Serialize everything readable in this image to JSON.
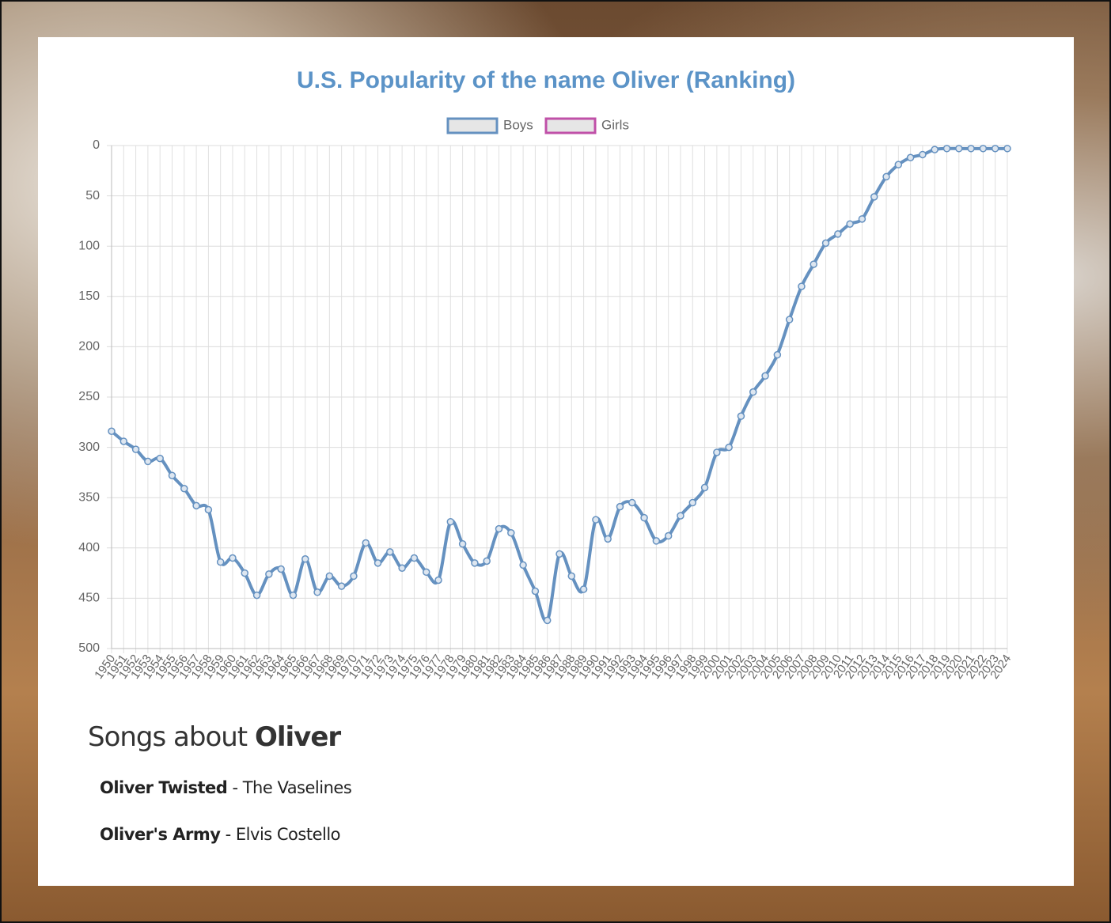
{
  "chart_data": {
    "type": "line",
    "title": "U.S. Popularity of the name Oliver (Ranking)",
    "categories": [
      "1950",
      "1951",
      "1952",
      "1953",
      "1954",
      "1955",
      "1956",
      "1957",
      "1958",
      "1959",
      "1960",
      "1961",
      "1962",
      "1963",
      "1964",
      "1965",
      "1966",
      "1967",
      "1968",
      "1969",
      "1970",
      "1971",
      "1972",
      "1973",
      "1974",
      "1975",
      "1976",
      "1977",
      "1978",
      "1979",
      "1980",
      "1981",
      "1982",
      "1983",
      "1984",
      "1985",
      "1986",
      "1987",
      "1988",
      "1989",
      "1990",
      "1991",
      "1992",
      "1993",
      "1994",
      "1995",
      "1996",
      "1997",
      "1998",
      "1999",
      "2000",
      "2001",
      "2002",
      "2003",
      "2004",
      "2005",
      "2006",
      "2007",
      "2008",
      "2009",
      "2010",
      "2011",
      "2012",
      "2013",
      "2014",
      "2015",
      "2016",
      "2017",
      "2018",
      "2019",
      "2020",
      "2021",
      "2022",
      "2023",
      "2024"
    ],
    "series": [
      {
        "name": "Boys",
        "color": "#6591c0",
        "values": [
          284,
          294,
          302,
          314,
          311,
          328,
          341,
          358,
          362,
          414,
          410,
          425,
          447,
          426,
          421,
          447,
          411,
          444,
          428,
          438,
          428,
          395,
          415,
          404,
          420,
          410,
          424,
          432,
          374,
          396,
          415,
          413,
          381,
          385,
          417,
          443,
          472,
          406,
          428,
          441,
          372,
          391,
          359,
          355,
          370,
          393,
          388,
          368,
          355,
          340,
          305,
          300,
          269,
          245,
          229,
          208,
          173,
          140,
          118,
          97,
          88,
          78,
          73,
          51,
          31,
          19,
          12,
          9,
          4,
          3,
          3,
          3,
          3,
          3,
          3
        ]
      },
      {
        "name": "Girls",
        "color": "#c050a8",
        "values": [
          null,
          null,
          null,
          null,
          null,
          null,
          null,
          null,
          null,
          null,
          null,
          null,
          null,
          null,
          null,
          null,
          null,
          null,
          null,
          null,
          null,
          null,
          null,
          null,
          null,
          null,
          null,
          null,
          null,
          null,
          null,
          null,
          null,
          null,
          null,
          null,
          null,
          null,
          null,
          null,
          null,
          null,
          null,
          null,
          null,
          null,
          null,
          null,
          null,
          null,
          null,
          null,
          null,
          null,
          null,
          null,
          null,
          null,
          null,
          null,
          null,
          null,
          null,
          null,
          null,
          null,
          null,
          null,
          null,
          null,
          null,
          null,
          null,
          null,
          null
        ]
      }
    ],
    "ylim": [
      0,
      500
    ],
    "yticks": [
      0,
      50,
      100,
      150,
      200,
      250,
      300,
      350,
      400,
      450,
      500
    ],
    "y_reversed": true,
    "grid": true,
    "legend": "top"
  },
  "songs": {
    "heading_prefix": "Songs about",
    "heading_name": "Oliver",
    "items": [
      {
        "title": "Oliver Twisted",
        "rest": "- The Vaselines"
      },
      {
        "title": "Oliver's Army",
        "rest": "- Elvis Costello"
      }
    ]
  }
}
